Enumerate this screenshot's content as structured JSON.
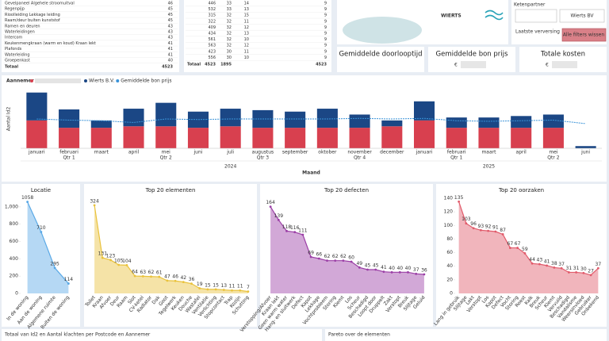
{
  "table1": {
    "rows": [
      [
        "Gevelpaneel Algehele stroomuitval",
        46
      ],
      [
        "Regenpijp",
        45
      ],
      [
        "Rioolleiding Lekkage leiding",
        45
      ],
      [
        "Raam/deur buiten kunststof",
        45
      ],
      [
        "Ramen en deuren",
        43
      ],
      [
        "Waterleidingen",
        43
      ],
      [
        "Intercom",
        43
      ],
      [
        "Keukenmengkraan (warm en koud) Kraan lekt",
        41
      ],
      [
        "Plafonds",
        41
      ],
      [
        "Waterleiding",
        41
      ],
      [
        "Groepenkast",
        40
      ]
    ],
    "total": [
      "Totaal",
      4523
    ]
  },
  "table2": {
    "rows": [
      [
        446,
        33,
        14,
        9
      ],
      [
        532,
        33,
        13,
        9
      ],
      [
        315,
        32,
        15,
        9
      ],
      [
        322,
        32,
        11,
        9
      ],
      [
        409,
        32,
        12,
        9
      ],
      [
        434,
        32,
        13,
        9
      ],
      [
        561,
        32,
        10,
        9
      ],
      [
        563,
        32,
        12,
        9
      ],
      [
        423,
        30,
        11,
        9
      ],
      [
        556,
        30,
        10,
        9
      ]
    ],
    "total": {
      "label": "Totaal",
      "values": [
        4523,
        1895,
        null,
        4523
      ]
    }
  },
  "logo": "WIERTS",
  "filter": {
    "label": "Ketenpartner",
    "value": "Wierts BV",
    "refresh_label": "Laatste verversing",
    "button": "Alle filters wissen"
  },
  "cards": [
    {
      "title": "Gemiddelde doorlooptijd"
    },
    {
      "title": "Gemiddelde bon prijs",
      "value": "€"
    },
    {
      "title": "Totale kosten",
      "value": "€"
    }
  ],
  "bottom_titles": [
    "Totaal van Id2 en Aantal klachten per Postcode en Aannemer",
    "Pareto over de elementen"
  ],
  "chart_data": [
    {
      "type": "bar",
      "stacked": true,
      "legend_title": "Aannemer",
      "y_label": "Aantal Id2",
      "x_label": "Maand",
      "categories": [
        "januari",
        "februari",
        "maart",
        "april",
        "mei",
        "juni",
        "juli",
        "augustus",
        "september",
        "oktober",
        "november",
        "december",
        "januari",
        "februari",
        "maart",
        "april",
        "mei",
        "juni"
      ],
      "quarters": [
        null,
        "Qtr 1",
        null,
        null,
        "Qtr 2",
        null,
        null,
        "Qtr 3",
        null,
        null,
        "Qtr 4",
        null,
        null,
        "Qtr 1",
        null,
        null,
        "Qtr 2",
        null
      ],
      "years": [
        null,
        null,
        null,
        null,
        null,
        null,
        "2024",
        null,
        null,
        null,
        null,
        null,
        null,
        null,
        "2025",
        null,
        null,
        null
      ],
      "ylim": [
        0,
        80
      ],
      "y2lim": [
        0,
        100
      ],
      "series": [
        {
          "color": "#d8404f",
          "values": [
            38,
            28,
            28,
            30,
            30,
            28,
            30,
            28,
            28,
            28,
            28,
            30,
            38,
            28,
            28,
            28,
            28,
            0
          ]
        },
        {
          "name": "Wierts B.V.",
          "color": "#1b4785",
          "values": [
            38,
            25,
            10,
            24,
            32,
            22,
            24,
            24,
            22,
            26,
            18,
            8,
            26,
            14,
            14,
            16,
            18,
            3
          ]
        },
        {
          "name": "Gemiddelde bon prijs",
          "type": "line",
          "axis": "y2",
          "color": "#3a93d8",
          "values": [
            50,
            48,
            47,
            44,
            50,
            49,
            50,
            50,
            50,
            50,
            51,
            50,
            51,
            47,
            46,
            47,
            48,
            42
          ]
        }
      ]
    },
    {
      "type": "area",
      "title": "Locatie",
      "color": "#5aa9e6",
      "categories": [
        "In de woning",
        "Aan de woning",
        "Algemene ruimte",
        "Buiten de woning"
      ],
      "values": [
        1058,
        710,
        295,
        114
      ],
      "ylim": [
        0,
        1100
      ],
      "yticks": [
        0,
        200,
        400,
        600,
        800,
        {
          "value": 1000,
          "label": "1,000"
        }
      ]
    },
    {
      "type": "area",
      "title": "Top 20 elementen",
      "color": "#e9c23c",
      "categories": [
        "Toilet",
        "Kraan",
        "Afvoer",
        "Deur",
        "Raam",
        "Slot",
        "CV-ketel",
        "Radiator",
        "Dak",
        "Goot",
        "Tegelwerk",
        "Keuken",
        "Douche",
        "Wastafel",
        "Ventilatie",
        "Verlichting",
        "Stopcontact",
        "Trap",
        "Kozijn",
        "Schutting"
      ],
      "values": [
        324,
        131,
        123,
        105,
        104,
        64,
        63,
        62,
        61,
        47,
        46,
        42,
        36,
        19,
        15,
        15,
        13,
        11,
        11,
        7
      ],
      "ylim": [
        0,
        350
      ]
    },
    {
      "type": "area",
      "title": "Top 20 defecten",
      "color": "#9b3fa6",
      "categories": [
        "Verstopping/Afvoer",
        "Kraan lekt",
        "Geen warm water",
        "Hang- en sluitwerk",
        "Defect",
        "Kapot",
        "Lekkage",
        "Vochtprobleem",
        "Storing",
        "Klemt",
        "Los",
        "Scheur",
        "Beschadigd",
        "Loopt door",
        "Druppelt",
        "Zakt",
        "Verstopt",
        "Breuk",
        "Slijtage",
        "Geluid"
      ],
      "values": [
        164,
        139,
        118,
        116,
        111,
        69,
        66,
        62,
        62,
        62,
        60,
        49,
        45,
        45,
        41,
        40,
        40,
        40,
        37,
        36
      ],
      "ylim": [
        0,
        180
      ]
    },
    {
      "type": "area",
      "title": "Top 20 oorzaken",
      "color": "#e15b6b",
      "categories": [
        "Lang in gebruik",
        "Slijtage",
        "Lekt",
        "Verstopt",
        "Los",
        "Kapot",
        "Defect",
        "Vocht",
        "Storing",
        "Roest",
        "Kalk",
        "Breuk",
        "Scheur",
        "Klemt",
        "Vervuild",
        "Beschadigd",
        "Vandalisme",
        "Weersinvloed",
        "Gebruiker",
        "Onbekend"
      ],
      "values": [
        135,
        103,
        96,
        93,
        92,
        91,
        87,
        67,
        67,
        59,
        44,
        43,
        41,
        38,
        37,
        31,
        31,
        30,
        27,
        37
      ],
      "ylim": [
        0,
        140
      ],
      "yticks": [
        0,
        20,
        40,
        60,
        80,
        100,
        120,
        140
      ]
    }
  ]
}
